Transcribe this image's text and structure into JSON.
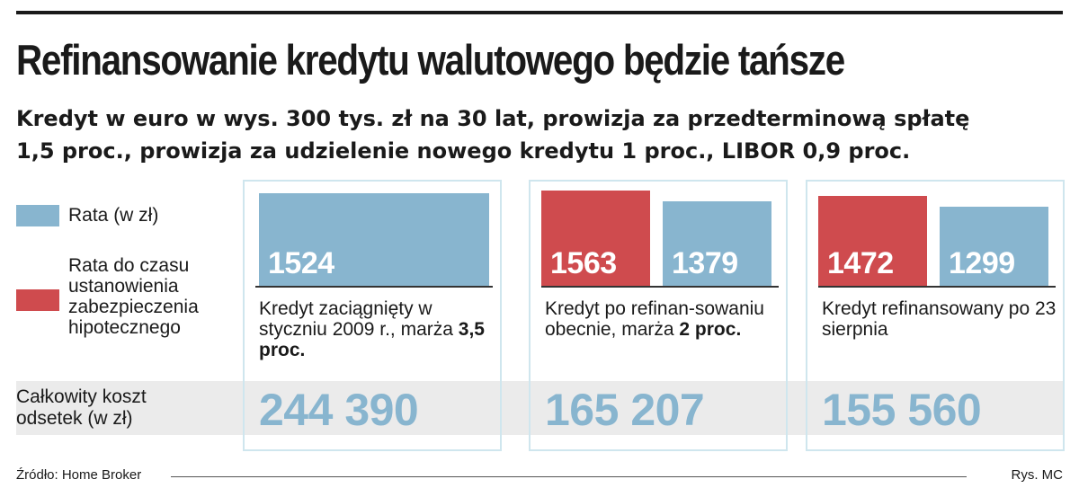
{
  "header": {
    "title": "Refinansowanie kredytu walutowego będzie tańsze",
    "subtitle_line1": "Kredyt w euro w wys. 300 tys. zł na 30 lat, prowizja za przedterminową spłatę",
    "subtitle_line2": "1,5 proc., prowizja za udzielenie nowego kredytu 1 proc.,  LIBOR 0,9 proc."
  },
  "legend": [
    {
      "label": "Rata (w zł)",
      "color": "#88b5cf"
    },
    {
      "label": "Rata do czasu ustanowienia zabezpieczenia hipotecznego",
      "color": "#cf4b4e"
    }
  ],
  "row_label": "Całkowity koszt odsetek (w zł)",
  "panels": [
    {
      "caption_text": "Kredyt zaciągnięty w styczniu 2009 r., marża ",
      "caption_bold": "3,5 proc.",
      "total": "244 390"
    },
    {
      "caption_text": "Kredyt po refinan-sowaniu obecnie, marża ",
      "caption_bold": "2 proc.",
      "total": "165 207"
    },
    {
      "caption_text": "Kredyt refinansowany po 23 sierpnia",
      "caption_bold": "",
      "total": "155 560"
    }
  ],
  "chart_data": {
    "type": "bar",
    "title": "Refinansowanie kredytu walutowego będzie tańsze",
    "subtitle": "Kredyt w euro w wys. 300 tys. zł na 30 lat, prowizja za przedterminową spłatę 1,5 proc., prowizja za udzielenie nowego kredytu 1 proc.,  LIBOR 0,9 proc.",
    "categories": [
      "Kredyt zaciągnięty w styczniu 2009 r., marża 3,5 proc.",
      "Kredyt po refinan-sowaniu obecnie, marża 2 proc.",
      "Kredyt refinansowany po 23 sierpnia"
    ],
    "series": [
      {
        "name": "Rata do czasu ustanowienia zabezpieczenia hipotecznego",
        "values": [
          null,
          1563,
          1472
        ],
        "color": "#cf4b4e"
      },
      {
        "name": "Rata (w zł)",
        "values": [
          1524,
          1379,
          1299
        ],
        "color": "#88b5cf"
      }
    ],
    "totals": {
      "label": "Całkowity koszt odsetek (w zł)",
      "values": [
        244390,
        165207,
        155560
      ]
    },
    "legend_position": "left",
    "grid": false,
    "ylim": [
      0,
      1563
    ]
  },
  "footer": {
    "source": "Źródło: Home Broker",
    "credit": "Rys. MC"
  }
}
